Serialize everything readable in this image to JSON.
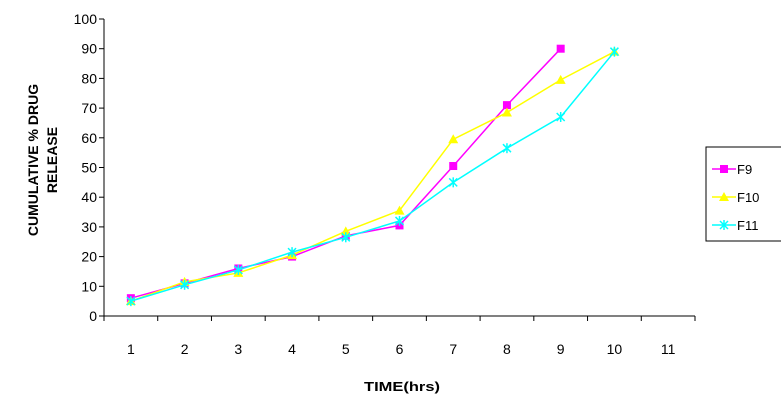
{
  "chart_data": {
    "type": "line",
    "title": "",
    "xlabel": "TIME(hrs)",
    "ylabel_line1": "CUMULATIVE % DRUG",
    "ylabel_line2": "RELEASE",
    "x": [
      1,
      2,
      3,
      4,
      5,
      6,
      7,
      8,
      9,
      10,
      11
    ],
    "ylim": [
      0,
      100
    ],
    "yticks": [
      0,
      10,
      20,
      30,
      40,
      50,
      60,
      70,
      80,
      90,
      100
    ],
    "grid": false,
    "legend_position": "right",
    "series": [
      {
        "name": "F9",
        "color": "#ff00ff",
        "marker": "square",
        "x": [
          1,
          2,
          3,
          4,
          5,
          6,
          7,
          8,
          9
        ],
        "values": [
          6,
          11,
          16,
          20,
          27,
          30.5,
          50.5,
          71,
          90
        ]
      },
      {
        "name": "F10",
        "color": "#ffff00",
        "marker": "triangle",
        "x": [
          1,
          2,
          3,
          4,
          5,
          6,
          7,
          8,
          9,
          10
        ],
        "values": [
          5,
          11.5,
          14.5,
          20.5,
          28.5,
          35.5,
          59.5,
          68.5,
          79.5,
          89
        ]
      },
      {
        "name": "F11",
        "color": "#00ffff",
        "marker": "star",
        "x": [
          1,
          2,
          3,
          4,
          5,
          6,
          7,
          8,
          9,
          10
        ],
        "values": [
          5,
          10.5,
          15.5,
          21.5,
          26.5,
          32,
          45,
          56.5,
          67,
          89
        ]
      }
    ]
  }
}
